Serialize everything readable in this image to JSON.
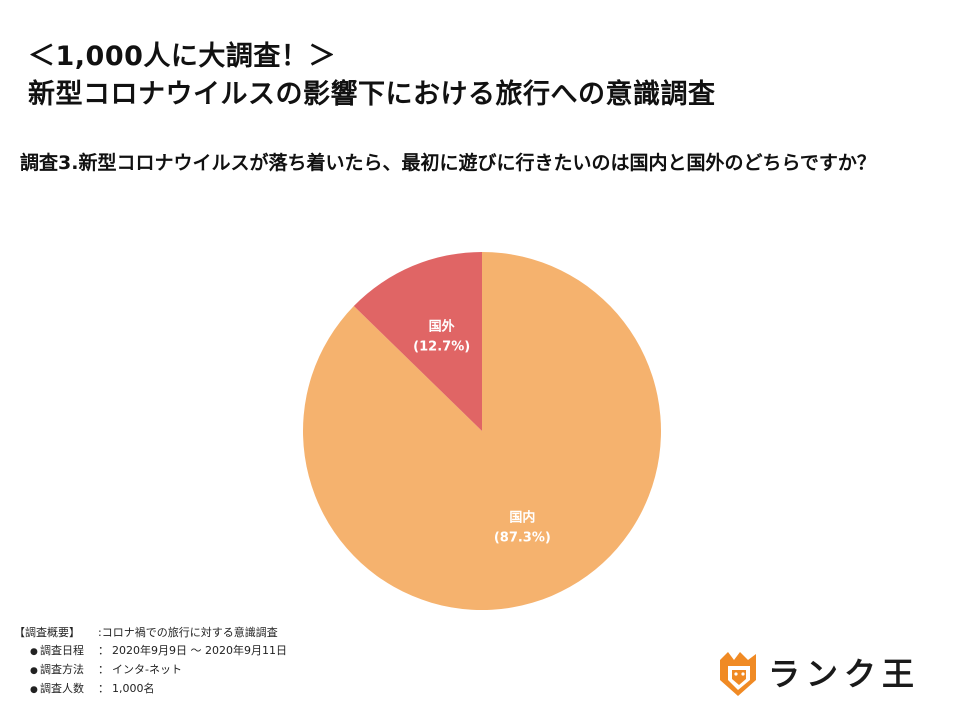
{
  "header": {
    "title_line1": "＜1,000人に大調査！＞",
    "title_line2": "新型コロナウイルスの影響下における旅行への意識調査"
  },
  "question": "調査3.新型コロナウイルスが落ち着いたら、最初に遊びに行きたいのは国内と国外のどちらですか？",
  "chart_data": {
    "type": "pie",
    "start": "12 o'clock",
    "direction": "clockwise",
    "slices": [
      {
        "label": "国内",
        "value": 87.3,
        "display": "(87.3%)",
        "color": "#F5B26E"
      },
      {
        "label": "国外",
        "value": 12.7,
        "display": "(12.7%)",
        "color": "#E06565"
      }
    ]
  },
  "summary": {
    "heading": "【調査概要】",
    "heading_value": ":コロナ禍での旅行に対する意識調査",
    "bullet": "●",
    "items": [
      {
        "key": "調査日程",
        "sep": "：",
        "value": "2020年9月9日 〜 2020年9月11日"
      },
      {
        "key": "調査方法",
        "sep": "：",
        "value": "インタ-ネット"
      },
      {
        "key": "調査人数",
        "sep": "：",
        "value": "1,000名"
      }
    ]
  },
  "logo": {
    "text": "ランク王",
    "icon": "lion-head-icon",
    "accent": "#F08A24"
  }
}
